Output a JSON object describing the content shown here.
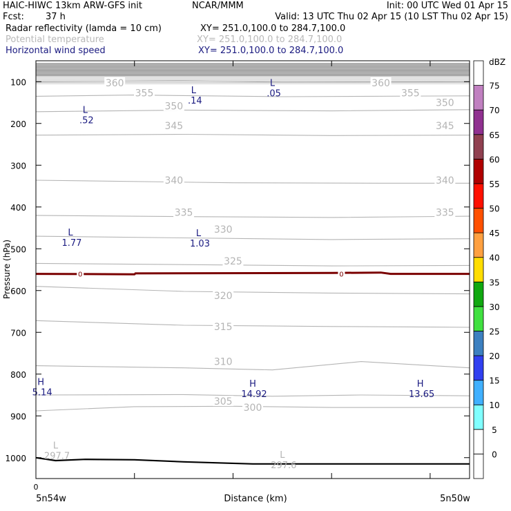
{
  "header": {
    "title": "HAIC-HIWC 13km ARW-GFS init",
    "org": "NCAR/MMM",
    "init": "Init: 00 UTC Wed 01 Apr 15",
    "fcst_label": "Fcst:",
    "fcst_value": "37 h",
    "valid": "Valid: 13 UTC Thu 02 Apr 15 (10 LST Thu 02 Apr 15)",
    "fields": [
      {
        "name": "Radar reflectivity (lamda = 10 cm)",
        "xy": "XY= 251.0,100.0 to 284.7,100.0",
        "color": "#000000"
      },
      {
        "name": "Potential temperature",
        "xy": "XY= 251.0,100.0 to 284.7,100.0",
        "color": "#b8b8b8"
      },
      {
        "name": "Horizontal wind speed",
        "xy": "XY= 251.0,100.0 to 284.7,100.0",
        "color": "#1a1a80"
      }
    ]
  },
  "chart_data": {
    "type": "contour",
    "xlabel": "Distance (km)",
    "ylabel": "Pressure (hPa)",
    "x_start_label": "5n54w",
    "x_end_label": "5n50w",
    "x_zero_label": "0",
    "yticks": [
      100,
      200,
      300,
      400,
      500,
      600,
      700,
      800,
      900,
      1000
    ],
    "ylim": [
      50,
      1050
    ],
    "xlim": [
      0,
      4.4
    ],
    "xticks": [
      1,
      2,
      3,
      4
    ],
    "theta_contours": [
      {
        "label": "360",
        "points": [
          [
            0,
            100
          ],
          [
            1.5,
            98
          ],
          [
            2.5,
            101
          ],
          [
            4.4,
            100
          ]
        ],
        "label_at": [
          [
            0.8,
            103
          ],
          [
            3.5,
            103
          ]
        ]
      },
      {
        "label": "355",
        "points": [
          [
            0,
            135
          ],
          [
            1,
            132
          ],
          [
            2.5,
            136
          ],
          [
            4.4,
            134
          ]
        ],
        "label_at": [
          [
            1.1,
            127
          ],
          [
            3.8,
            127
          ]
        ]
      },
      {
        "label": "350",
        "points": [
          [
            0,
            172
          ],
          [
            1.5,
            168
          ],
          [
            3,
            170
          ],
          [
            4.4,
            167
          ]
        ],
        "label_at": [
          [
            1.4,
            158
          ],
          [
            4.15,
            150
          ]
        ]
      },
      {
        "label": "345",
        "points": [
          [
            0,
            228
          ],
          [
            1.5,
            226
          ],
          [
            3,
            229
          ],
          [
            4.4,
            228
          ]
        ],
        "label_at": [
          [
            1.4,
            205
          ],
          [
            4.15,
            205
          ]
        ]
      },
      {
        "label": "340",
        "points": [
          [
            0,
            336
          ],
          [
            2,
            342
          ],
          [
            3.5,
            343
          ],
          [
            4.4,
            343
          ]
        ],
        "label_at": [
          [
            1.4,
            336
          ],
          [
            4.15,
            336
          ]
        ]
      },
      {
        "label": "335",
        "points": [
          [
            0,
            420
          ],
          [
            1.5,
            423
          ],
          [
            3,
            425
          ],
          [
            4.4,
            422
          ]
        ],
        "label_at": [
          [
            1.5,
            413
          ],
          [
            4.15,
            413
          ]
        ]
      },
      {
        "label": "330",
        "points": [
          [
            0,
            470
          ],
          [
            1.5,
            474
          ],
          [
            3,
            478
          ],
          [
            4.4,
            476
          ]
        ],
        "label_at": [
          [
            1.9,
            453
          ]
        ]
      },
      {
        "label": "325",
        "points": [
          [
            0,
            535
          ],
          [
            1.5,
            538
          ],
          [
            3,
            541
          ],
          [
            4.4,
            540
          ]
        ],
        "label_at": [
          [
            2.0,
            529
          ]
        ]
      },
      {
        "label": "320",
        "points": [
          [
            0,
            590
          ],
          [
            1.5,
            602
          ],
          [
            3,
            606
          ],
          [
            4.4,
            608
          ]
        ],
        "label_at": [
          [
            1.9,
            612
          ]
        ]
      },
      {
        "label": "315",
        "points": [
          [
            0,
            672
          ],
          [
            1.5,
            683
          ],
          [
            3,
            686
          ],
          [
            4.4,
            688
          ]
        ],
        "label_at": [
          [
            1.9,
            686
          ]
        ]
      },
      {
        "label": "310",
        "points": [
          [
            0,
            780
          ],
          [
            1.5,
            785
          ],
          [
            2.4,
            790
          ],
          [
            3.3,
            770
          ],
          [
            4.4,
            785
          ]
        ],
        "label_at": [
          [
            1.9,
            770
          ]
        ]
      },
      {
        "label": "305",
        "points": [
          [
            0,
            850
          ],
          [
            1.5,
            849
          ],
          [
            2.4,
            853
          ],
          [
            3.3,
            850
          ],
          [
            4.4,
            852
          ]
        ],
        "label_at": [
          [
            1.9,
            865
          ]
        ]
      },
      {
        "label": "300",
        "points": [
          [
            0,
            888
          ],
          [
            1,
            878
          ],
          [
            2,
            877
          ],
          [
            3,
            880
          ],
          [
            4.4,
            880
          ]
        ],
        "label_at": [
          [
            2.2,
            880
          ]
        ]
      }
    ],
    "theta_extrema": [
      {
        "letter": "L",
        "value": "297.7",
        "x": 0.2,
        "p": 978
      },
      {
        "letter": "L",
        "value": "297.6",
        "x": 2.5,
        "p": 1000
      }
    ],
    "wind_extrema": [
      {
        "letter": "L",
        "value": ".14",
        "x": 1.6,
        "p": 128
      },
      {
        "letter": "L",
        "value": ".05",
        "x": 2.4,
        "p": 110
      },
      {
        "letter": "L",
        "value": ".52",
        "x": 0.5,
        "p": 175
      },
      {
        "letter": "L",
        "value": "1.77",
        "x": 0.35,
        "p": 468
      },
      {
        "letter": "L",
        "value": "1.03",
        "x": 1.65,
        "p": 470
      },
      {
        "letter": "H",
        "value": "5.14",
        "x": 0.05,
        "p": 826
      },
      {
        "letter": "H",
        "value": "14.92",
        "x": 2.2,
        "p": 830
      },
      {
        "letter": "H",
        "value": "13.65",
        "x": 3.9,
        "p": 830
      }
    ],
    "zero_contour": {
      "label": "0",
      "points": [
        [
          0,
          560
        ],
        [
          1,
          561
        ],
        [
          1.01,
          559
        ],
        [
          3,
          558
        ],
        [
          3.5,
          557
        ],
        [
          3.6,
          560
        ],
        [
          4.4,
          560
        ]
      ],
      "label_at": [
        [
          0.45,
          560
        ],
        [
          3.1,
          560
        ]
      ],
      "color": "#7a0000"
    },
    "terrain": {
      "points": [
        [
          0,
          1000
        ],
        [
          0.2,
          1007
        ],
        [
          0.5,
          1004
        ],
        [
          1,
          1005
        ],
        [
          1.5,
          1010
        ],
        [
          2.2,
          1015
        ],
        [
          3,
          1015
        ],
        [
          4.4,
          1015
        ]
      ],
      "color": "#000000"
    },
    "colorbar": {
      "unit": "dBZ",
      "ticks": [
        0,
        5,
        10,
        15,
        20,
        25,
        30,
        35,
        40,
        45,
        50,
        55,
        60,
        65,
        70,
        75
      ],
      "colors": [
        "#ffffff",
        "#ffffff",
        "#80ffff",
        "#40b0ff",
        "#3040f0",
        "#3c80c0",
        "#40e040",
        "#10a810",
        "#ffdd00",
        "#ffa040",
        "#ff5000",
        "#ff1000",
        "#b00000",
        "#904050",
        "#903090",
        "#c080c0",
        "#ffffff"
      ]
    }
  }
}
